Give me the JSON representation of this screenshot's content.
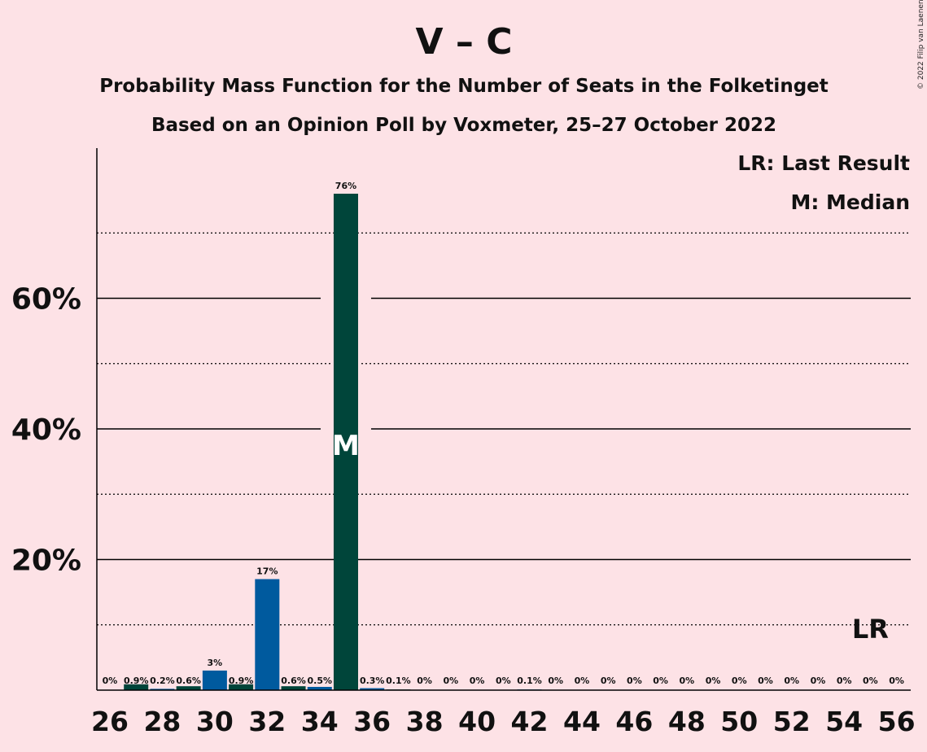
{
  "chart_data": {
    "type": "bar",
    "title": "V – C",
    "subtitle_1": "Probability Mass Function for the Number of Seats in the Folketinget",
    "subtitle_2": "Based on an Opinion Poll by Voxmeter, 25–27 October 2022",
    "copyright": "© 2022 Filip van Laenen",
    "legend": {
      "last_result": "LR: Last Result",
      "median": "M: Median",
      "placement": "top-right"
    },
    "median_marker": "M",
    "last_result_marker": "LR",
    "median_seat": 35,
    "last_result_seat": 55,
    "ylim": [
      0,
      0.8
    ],
    "y_major_ticks": [
      0.2,
      0.4,
      0.6
    ],
    "y_tick_labels": [
      "20%",
      "40%",
      "60%"
    ],
    "y_minor_ticks": [
      0.1,
      0.3,
      0.5,
      0.7
    ],
    "x_tick_labels": [
      "26",
      "28",
      "30",
      "32",
      "34",
      "36",
      "38",
      "40",
      "42",
      "44",
      "46",
      "48",
      "50",
      "52",
      "54",
      "56"
    ],
    "colors": {
      "bar_dark": "#00453a",
      "bar_blue": "#005a9e",
      "background": "#fde2e6"
    },
    "bars": [
      {
        "seat": 26,
        "value": 0.0,
        "label": "0%",
        "color": "dark"
      },
      {
        "seat": 27,
        "value": 0.009,
        "label": "0.9%",
        "color": "dark"
      },
      {
        "seat": 28,
        "value": 0.002,
        "label": "0.2%",
        "color": "blue"
      },
      {
        "seat": 29,
        "value": 0.006,
        "label": "0.6%",
        "color": "dark"
      },
      {
        "seat": 30,
        "value": 0.03,
        "label": "3%",
        "color": "blue"
      },
      {
        "seat": 31,
        "value": 0.009,
        "label": "0.9%",
        "color": "dark"
      },
      {
        "seat": 32,
        "value": 0.17,
        "label": "17%",
        "color": "blue"
      },
      {
        "seat": 33,
        "value": 0.006,
        "label": "0.6%",
        "color": "dark"
      },
      {
        "seat": 34,
        "value": 0.005,
        "label": "0.5%",
        "color": "blue"
      },
      {
        "seat": 35,
        "value": 0.76,
        "label": "76%",
        "color": "dark"
      },
      {
        "seat": 36,
        "value": 0.003,
        "label": "0.3%",
        "color": "blue"
      },
      {
        "seat": 37,
        "value": 0.001,
        "label": "0.1%",
        "color": "dark"
      },
      {
        "seat": 38,
        "value": 0.0,
        "label": "0%",
        "color": "blue"
      },
      {
        "seat": 39,
        "value": 0.0,
        "label": "0%",
        "color": "dark"
      },
      {
        "seat": 40,
        "value": 0.0,
        "label": "0%",
        "color": "blue"
      },
      {
        "seat": 41,
        "value": 0.0,
        "label": "0%",
        "color": "dark"
      },
      {
        "seat": 42,
        "value": 0.001,
        "label": "0.1%",
        "color": "blue"
      },
      {
        "seat": 43,
        "value": 0.0,
        "label": "0%",
        "color": "dark"
      },
      {
        "seat": 44,
        "value": 0.0,
        "label": "0%",
        "color": "blue"
      },
      {
        "seat": 45,
        "value": 0.0,
        "label": "0%",
        "color": "dark"
      },
      {
        "seat": 46,
        "value": 0.0,
        "label": "0%",
        "color": "blue"
      },
      {
        "seat": 47,
        "value": 0.0,
        "label": "0%",
        "color": "dark"
      },
      {
        "seat": 48,
        "value": 0.0,
        "label": "0%",
        "color": "blue"
      },
      {
        "seat": 49,
        "value": 0.0,
        "label": "0%",
        "color": "dark"
      },
      {
        "seat": 50,
        "value": 0.0,
        "label": "0%",
        "color": "blue"
      },
      {
        "seat": 51,
        "value": 0.0,
        "label": "0%",
        "color": "dark"
      },
      {
        "seat": 52,
        "value": 0.0,
        "label": "0%",
        "color": "blue"
      },
      {
        "seat": 53,
        "value": 0.0,
        "label": "0%",
        "color": "dark"
      },
      {
        "seat": 54,
        "value": 0.0,
        "label": "0%",
        "color": "blue"
      },
      {
        "seat": 55,
        "value": 0.0,
        "label": "0%",
        "color": "dark"
      },
      {
        "seat": 56,
        "value": 0.0,
        "label": "0%",
        "color": "blue"
      }
    ]
  }
}
